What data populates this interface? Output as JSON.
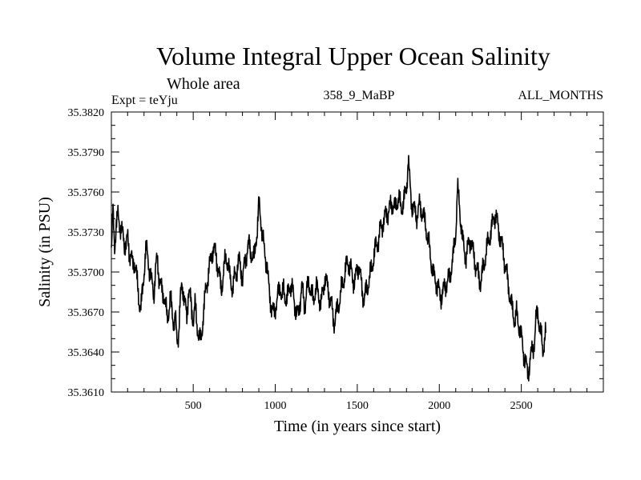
{
  "chart_data": {
    "type": "line",
    "title": "Volume Integral Upper Ocean Salinity",
    "subtitle": "Whole area",
    "annotation_left": "Expt = teYju",
    "annotation_center": "358_9_MaBP",
    "annotation_right": "ALL_MONTHS",
    "xlabel": "Time (in years since start)",
    "ylabel": "Salinity (in PSU)",
    "xlim": [
      1,
      3000
    ],
    "ylim": [
      35.361,
      35.382
    ],
    "x_ticks": [
      500,
      1000,
      1500,
      2000,
      2500
    ],
    "x_tick_labels": [
      "500",
      "1000",
      "1500",
      "2000",
      "2500"
    ],
    "y_ticks": [
      35.361,
      35.364,
      35.367,
      35.37,
      35.373,
      35.376,
      35.379,
      35.382
    ],
    "y_tick_labels": [
      "35.3610",
      "35.3640",
      "35.3670",
      "35.3700",
      "35.3730",
      "35.3760",
      "35.3790",
      "35.3820"
    ],
    "grid": false,
    "line_color": "#000000",
    "series": [
      {
        "name": "Salinity",
        "x_start": 1,
        "x_step": 10,
        "values": [
          35.3715,
          35.3745,
          35.372,
          35.3735,
          35.3742,
          35.3738,
          35.373,
          35.3728,
          35.3722,
          35.372,
          35.3725,
          35.3715,
          35.3712,
          35.3705,
          35.3708,
          35.3702,
          35.3688,
          35.3678,
          35.3672,
          35.3685,
          35.3702,
          35.3718,
          35.3712,
          35.3705,
          35.3695,
          35.369,
          35.3685,
          35.3702,
          35.371,
          35.3698,
          35.369,
          35.3685,
          35.3683,
          35.3675,
          35.3665,
          35.3672,
          35.368,
          35.367,
          35.3662,
          35.3665,
          35.3648,
          35.3655,
          35.3678,
          35.369,
          35.3685,
          35.3675,
          35.3665,
          35.3688,
          35.3682,
          35.367,
          35.3665,
          35.3675,
          35.3662,
          35.3655,
          35.3648,
          35.3652,
          35.3668,
          35.368,
          35.369,
          35.3698,
          35.3705,
          35.3712,
          35.3718,
          35.3715,
          35.3712,
          35.3703,
          35.3695,
          35.3688,
          35.3695,
          35.3705,
          35.3712,
          35.3706,
          35.3698,
          35.3692,
          35.3688,
          35.3695,
          35.37,
          35.3705,
          35.3708,
          35.3702,
          35.3695,
          35.3703,
          35.3712,
          35.3718,
          35.372,
          35.3715,
          35.3712,
          35.3708,
          35.3725,
          35.373,
          35.3752,
          35.3742,
          35.3728,
          35.3718,
          35.3712,
          35.3702,
          35.3688,
          35.3678,
          35.3672,
          35.3668,
          35.3675,
          35.3678,
          35.3685,
          35.369,
          35.368,
          35.3686,
          35.3682,
          35.3678,
          35.3685,
          35.3692,
          35.3688,
          35.3682,
          35.3675,
          35.3668,
          35.3668,
          35.3678,
          35.3688,
          35.3682,
          35.3675,
          35.3684,
          35.3692,
          35.369,
          35.3683,
          35.3678,
          35.3685,
          35.3688,
          35.3684,
          35.368,
          35.3676,
          35.3686,
          35.3696,
          35.3692,
          35.3688,
          35.3682,
          35.3676,
          35.3668,
          35.3662,
          35.3668,
          35.3674,
          35.3678,
          35.3684,
          35.3692,
          35.3696,
          35.3703,
          35.3708,
          35.3706,
          35.3701,
          35.3696,
          35.3693,
          35.3696,
          35.3702,
          35.3706,
          35.3694,
          35.3685,
          35.368,
          35.3684,
          35.3688,
          35.3694,
          35.3698,
          35.3705,
          35.3712,
          35.3718,
          35.3721,
          35.3726,
          35.3732,
          35.3735,
          35.3738,
          35.3742,
          35.3744,
          35.3746,
          35.3748,
          35.3752,
          35.375,
          35.3747,
          35.3752,
          35.3756,
          35.375,
          35.3748,
          35.3752,
          35.3757,
          35.3765,
          35.3785,
          35.3765,
          35.3752,
          35.3748,
          35.3745,
          35.3742,
          35.3746,
          35.375,
          35.3747,
          35.3743,
          35.3738,
          35.3732,
          35.3724,
          35.3716,
          35.3708,
          35.37,
          35.3695,
          35.3693,
          35.3688,
          35.3684,
          35.3682,
          35.3684,
          35.3688,
          35.3692,
          35.3692,
          35.3696,
          35.3702,
          35.3708,
          35.3718,
          35.3732,
          35.3762,
          35.3752,
          35.3738,
          35.3726,
          35.3716,
          35.3712,
          35.3716,
          35.3722,
          35.3724,
          35.3718,
          35.3712,
          35.3706,
          35.37,
          35.3697,
          35.3692,
          35.3698,
          35.3704,
          35.3712,
          35.3718,
          35.3724,
          35.3728,
          35.3734,
          35.374,
          35.3744,
          35.3738,
          35.3732,
          35.3726,
          35.372,
          35.3714,
          35.3706,
          35.3698,
          35.369,
          35.3682,
          35.3674,
          35.3668,
          35.3664,
          35.3668,
          35.3662,
          35.3658,
          35.365,
          35.3642,
          35.3636,
          35.3628,
          35.3624,
          35.3632,
          35.3638,
          35.3644,
          35.3648,
          35.3666,
          35.3672,
          35.3658,
          35.3652,
          35.3642,
          35.3648,
          35.3655
        ]
      }
    ]
  }
}
